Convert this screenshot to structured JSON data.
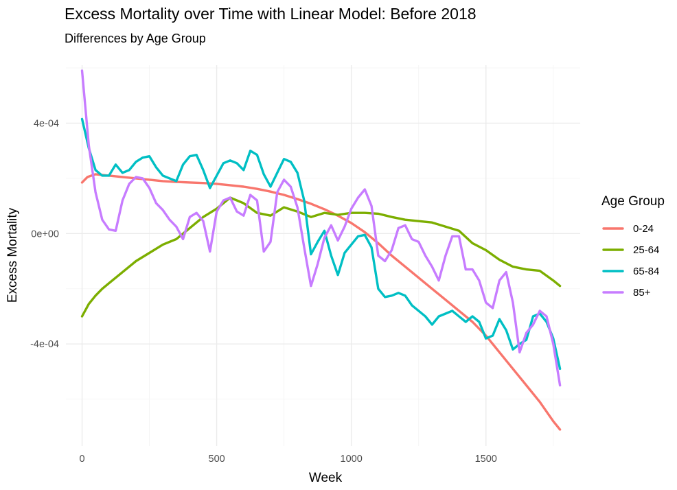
{
  "chart_data": {
    "type": "line",
    "title": "Excess Mortality over Time with Linear Model: Before 2018",
    "subtitle": "Differences by Age Group",
    "xlabel": "Week",
    "ylabel": "Excess Mortality",
    "xlim": [
      -60,
      1850
    ],
    "ylim": [
      -0.00077,
      0.00061
    ],
    "x_ticks": [
      0,
      500,
      1000,
      1500
    ],
    "x_tick_labels": [
      "0",
      "500",
      "1000",
      "1500"
    ],
    "y_ticks": [
      -0.0004,
      0,
      0.0004
    ],
    "y_tick_labels": [
      "-4e-04",
      "0e+00",
      "4e-04"
    ],
    "grid": true,
    "legend": {
      "title": "Age Group",
      "position": "right"
    },
    "series": [
      {
        "name": "0-24",
        "color": "#F8766D",
        "points": [
          [
            0,
            0.000185
          ],
          [
            20,
            0.000205
          ],
          [
            50,
            0.000215
          ],
          [
            100,
            0.00021
          ],
          [
            150,
            0.000205
          ],
          [
            200,
            0.0002
          ],
          [
            250,
            0.000195
          ],
          [
            300,
            0.00019
          ],
          [
            350,
            0.000187
          ],
          [
            400,
            0.000185
          ],
          [
            450,
            0.000183
          ],
          [
            500,
            0.00018
          ],
          [
            550,
            0.000175
          ],
          [
            600,
            0.00017
          ],
          [
            650,
            0.000162
          ],
          [
            700,
            0.000152
          ],
          [
            750,
            0.00014
          ],
          [
            800,
            0.000125
          ],
          [
            850,
            0.000108
          ],
          [
            900,
            8.8e-05
          ],
          [
            950,
            6.5e-05
          ],
          [
            1000,
            3.8e-05
          ],
          [
            1050,
            5e-06
          ],
          [
            1100,
            -3.5e-05
          ],
          [
            1150,
            -8e-05
          ],
          [
            1200,
            -0.00012
          ],
          [
            1250,
            -0.00016
          ],
          [
            1300,
            -0.0002
          ],
          [
            1350,
            -0.00024
          ],
          [
            1400,
            -0.00028
          ],
          [
            1450,
            -0.00032
          ],
          [
            1500,
            -0.00037
          ],
          [
            1550,
            -0.00043
          ],
          [
            1600,
            -0.00049
          ],
          [
            1650,
            -0.00055
          ],
          [
            1700,
            -0.00061
          ],
          [
            1750,
            -0.00068
          ],
          [
            1775,
            -0.00071
          ]
        ]
      },
      {
        "name": "25-64",
        "color": "#7CAE00",
        "points": [
          [
            0,
            -0.0003
          ],
          [
            25,
            -0.000255
          ],
          [
            50,
            -0.000225
          ],
          [
            75,
            -0.0002
          ],
          [
            100,
            -0.00018
          ],
          [
            150,
            -0.00014
          ],
          [
            200,
            -0.0001
          ],
          [
            250,
            -7e-05
          ],
          [
            300,
            -4e-05
          ],
          [
            350,
            -2e-05
          ],
          [
            400,
            2e-05
          ],
          [
            450,
            6e-05
          ],
          [
            500,
            9e-05
          ],
          [
            550,
            0.00013
          ],
          [
            600,
            0.00011
          ],
          [
            650,
            7.5e-05
          ],
          [
            700,
            6.5e-05
          ],
          [
            750,
            9.5e-05
          ],
          [
            800,
            8e-05
          ],
          [
            850,
            6e-05
          ],
          [
            900,
            7.5e-05
          ],
          [
            950,
            6.8e-05
          ],
          [
            1000,
            7.5e-05
          ],
          [
            1050,
            7.5e-05
          ],
          [
            1100,
            7.2e-05
          ],
          [
            1150,
            6e-05
          ],
          [
            1200,
            5e-05
          ],
          [
            1250,
            4.5e-05
          ],
          [
            1300,
            4e-05
          ],
          [
            1350,
            2.5e-05
          ],
          [
            1400,
            1e-05
          ],
          [
            1450,
            -3.5e-05
          ],
          [
            1500,
            -6e-05
          ],
          [
            1550,
            -9.5e-05
          ],
          [
            1600,
            -0.00012
          ],
          [
            1650,
            -0.00013
          ],
          [
            1700,
            -0.000135
          ],
          [
            1750,
            -0.00017
          ],
          [
            1775,
            -0.00019
          ]
        ]
      },
      {
        "name": "65-84",
        "color": "#00BFC4",
        "points": [
          [
            0,
            0.000415
          ],
          [
            25,
            0.00031
          ],
          [
            50,
            0.00023
          ],
          [
            75,
            0.00021
          ],
          [
            100,
            0.00021
          ],
          [
            125,
            0.00025
          ],
          [
            150,
            0.00022
          ],
          [
            175,
            0.00023
          ],
          [
            200,
            0.00026
          ],
          [
            225,
            0.000275
          ],
          [
            250,
            0.00028
          ],
          [
            275,
            0.00024
          ],
          [
            300,
            0.00021
          ],
          [
            325,
            0.0002
          ],
          [
            350,
            0.00019
          ],
          [
            375,
            0.00025
          ],
          [
            400,
            0.00028
          ],
          [
            425,
            0.000285
          ],
          [
            450,
            0.00023
          ],
          [
            475,
            0.000165
          ],
          [
            500,
            0.00021
          ],
          [
            525,
            0.000255
          ],
          [
            550,
            0.000265
          ],
          [
            575,
            0.000255
          ],
          [
            600,
            0.00023
          ],
          [
            625,
            0.0003
          ],
          [
            650,
            0.000285
          ],
          [
            675,
            0.000215
          ],
          [
            700,
            0.00017
          ],
          [
            725,
            0.00022
          ],
          [
            750,
            0.00027
          ],
          [
            775,
            0.00026
          ],
          [
            800,
            0.00022
          ],
          [
            825,
            0.00012
          ],
          [
            850,
            -7.5e-05
          ],
          [
            875,
            -3e-05
          ],
          [
            900,
            1e-05
          ],
          [
            925,
            -8e-05
          ],
          [
            950,
            -0.00015
          ],
          [
            975,
            -7e-05
          ],
          [
            1000,
            -4e-05
          ],
          [
            1025,
            -1e-05
          ],
          [
            1050,
            -5e-06
          ],
          [
            1075,
            -5e-05
          ],
          [
            1100,
            -0.0002
          ],
          [
            1125,
            -0.00023
          ],
          [
            1150,
            -0.000225
          ],
          [
            1175,
            -0.000215
          ],
          [
            1200,
            -0.000225
          ],
          [
            1225,
            -0.00026
          ],
          [
            1250,
            -0.00028
          ],
          [
            1275,
            -0.0003
          ],
          [
            1300,
            -0.00033
          ],
          [
            1325,
            -0.0003
          ],
          [
            1350,
            -0.00029
          ],
          [
            1375,
            -0.00028
          ],
          [
            1400,
            -0.0003
          ],
          [
            1425,
            -0.00032
          ],
          [
            1450,
            -0.0003
          ],
          [
            1475,
            -0.00032
          ],
          [
            1500,
            -0.00038
          ],
          [
            1525,
            -0.00037
          ],
          [
            1550,
            -0.00031
          ],
          [
            1575,
            -0.00035
          ],
          [
            1600,
            -0.00042
          ],
          [
            1625,
            -0.0004
          ],
          [
            1650,
            -0.000385
          ],
          [
            1675,
            -0.0003
          ],
          [
            1700,
            -0.00029
          ],
          [
            1725,
            -0.00032
          ],
          [
            1750,
            -0.00038
          ],
          [
            1775,
            -0.00049
          ]
        ]
      },
      {
        "name": "85+",
        "color": "#C77CFF",
        "points": [
          [
            0,
            0.00059
          ],
          [
            25,
            0.00032
          ],
          [
            50,
            0.00015
          ],
          [
            75,
            5e-05
          ],
          [
            100,
            1.5e-05
          ],
          [
            125,
            1e-05
          ],
          [
            150,
            0.00012
          ],
          [
            175,
            0.00018
          ],
          [
            200,
            0.000205
          ],
          [
            225,
            0.0002
          ],
          [
            250,
            0.000165
          ],
          [
            275,
            0.00011
          ],
          [
            300,
            8.5e-05
          ],
          [
            325,
            5e-05
          ],
          [
            350,
            2.5e-05
          ],
          [
            375,
            -2e-05
          ],
          [
            400,
            6e-05
          ],
          [
            425,
            7.5e-05
          ],
          [
            450,
            4.5e-05
          ],
          [
            475,
            -6.5e-05
          ],
          [
            500,
            8e-05
          ],
          [
            525,
            0.00012
          ],
          [
            550,
            0.00013
          ],
          [
            575,
            8e-05
          ],
          [
            600,
            6.5e-05
          ],
          [
            625,
            0.00014
          ],
          [
            650,
            0.00012
          ],
          [
            675,
            -6.5e-05
          ],
          [
            700,
            -3e-05
          ],
          [
            725,
            0.00015
          ],
          [
            750,
            0.000195
          ],
          [
            775,
            0.00017
          ],
          [
            800,
            9.5e-05
          ],
          [
            825,
            -5e-05
          ],
          [
            850,
            -0.00019
          ],
          [
            875,
            -0.00011
          ],
          [
            900,
            -1.5e-05
          ],
          [
            925,
            3e-05
          ],
          [
            950,
            -2.5e-05
          ],
          [
            975,
            2.5e-05
          ],
          [
            1000,
            9e-05
          ],
          [
            1025,
            0.00013
          ],
          [
            1050,
            0.00016
          ],
          [
            1075,
            0.0001
          ],
          [
            1100,
            -8e-05
          ],
          [
            1125,
            -0.0001
          ],
          [
            1150,
            -6e-05
          ],
          [
            1175,
            2e-05
          ],
          [
            1200,
            3e-05
          ],
          [
            1225,
            -2e-05
          ],
          [
            1250,
            -3e-05
          ],
          [
            1275,
            -8e-05
          ],
          [
            1300,
            -0.00012
          ],
          [
            1325,
            -0.00017
          ],
          [
            1350,
            -8e-05
          ],
          [
            1375,
            -1e-05
          ],
          [
            1400,
            -1e-05
          ],
          [
            1425,
            -0.00013
          ],
          [
            1450,
            -0.00013
          ],
          [
            1475,
            -0.00017
          ],
          [
            1500,
            -0.00025
          ],
          [
            1525,
            -0.00027
          ],
          [
            1550,
            -0.00017
          ],
          [
            1575,
            -0.00014
          ],
          [
            1600,
            -0.00025
          ],
          [
            1625,
            -0.00043
          ],
          [
            1650,
            -0.00036
          ],
          [
            1675,
            -0.00033
          ],
          [
            1700,
            -0.00028
          ],
          [
            1725,
            -0.0003
          ],
          [
            1750,
            -0.0004
          ],
          [
            1775,
            -0.00055
          ]
        ]
      }
    ]
  }
}
